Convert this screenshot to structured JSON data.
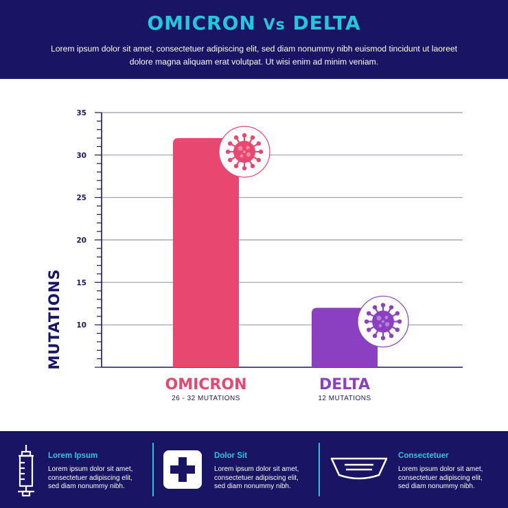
{
  "header": {
    "title_main_1": "OMICRON",
    "title_vs": "Vs",
    "title_main_2": "DELTA",
    "subtitle": "Lorem ipsum dolor sit amet, consectetuer adipiscing elit, sed diam nonummy nibh euismod tincidunt ut laoreet dolore magna aliquam erat volutpat. Ut wisi enim ad minim veniam."
  },
  "chart_data": {
    "type": "bar",
    "title": "OMICRON Vs DELTA",
    "ylabel": "MUTATIONS",
    "xlabel": "",
    "ylim": [
      5,
      35
    ],
    "yticks": [
      10,
      15,
      20,
      25,
      30,
      35
    ],
    "grid": true,
    "categories": [
      "OMICRON",
      "DELTA"
    ],
    "values": [
      32,
      12
    ],
    "sublabels": [
      "26 - 32 MUTATIONS",
      "12 MUTATIONS"
    ],
    "colors": [
      "#e8476f",
      "#8b3fc1"
    ]
  },
  "footer": {
    "items": [
      {
        "heading": "Lorem Ipsum",
        "text": "Lorem ipsum dolor sit amet, consectetuer adipiscing elit, sed diam nonummy nibh.",
        "icon": "syringe-icon"
      },
      {
        "heading": "Dolor Sit",
        "text": "Lorem ipsum dolor sit amet, consectetuer adipiscing elit, sed diam nonummy nibh.",
        "icon": "medical-cross-icon"
      },
      {
        "heading": "Consectetuer",
        "text": "Lorem ipsum dolor sit amet, consectetuer adipiscing elit, sed diam nonummy nibh.",
        "icon": "face-mask-icon"
      }
    ]
  }
}
